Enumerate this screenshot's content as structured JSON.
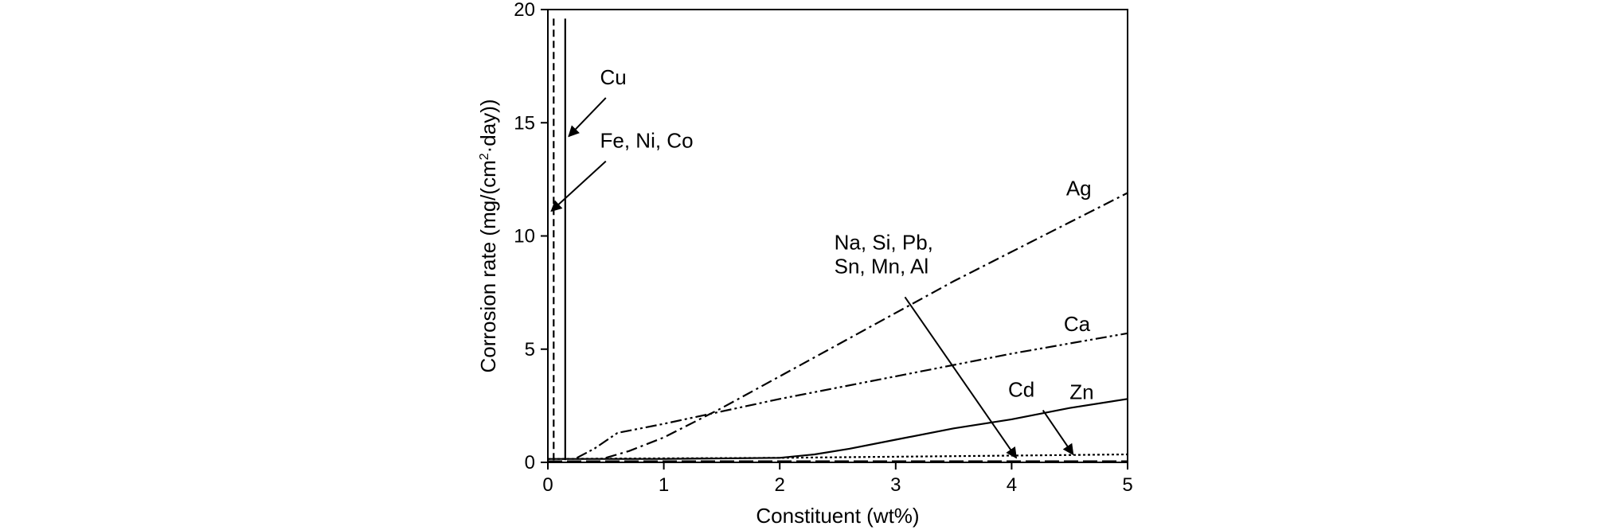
{
  "chart_data": {
    "type": "line",
    "xlabel": "Constituent (wt%)",
    "ylabel_main": "Corrosion rate (mg/(cm",
    "ylabel_sup": "2",
    "ylabel_tail": "·day))",
    "xlim": [
      0,
      5
    ],
    "ylim": [
      0,
      20
    ],
    "x_ticks": [
      "0",
      "1",
      "2",
      "3",
      "4",
      "5"
    ],
    "y_ticks": [
      "0",
      "5",
      "10",
      "15",
      "20"
    ],
    "grid": false,
    "legend": "none",
    "series": [
      {
        "name": "Cu",
        "style": "solid-thin",
        "x": [
          0.15,
          0.15
        ],
        "y": [
          0.1,
          19.6
        ]
      },
      {
        "name": "Fe, Ni, Co",
        "style": "dashed",
        "x": [
          0.05,
          0.05
        ],
        "y": [
          0.1,
          19.6
        ]
      },
      {
        "name": "Ag",
        "style": "dash-dot",
        "x": [
          0.5,
          0.7,
          1.0,
          1.5,
          2.0,
          2.5,
          3.0,
          3.5,
          4.0,
          4.5,
          5.0
        ],
        "y": [
          0.2,
          0.5,
          1.1,
          2.4,
          3.8,
          5.2,
          6.6,
          8.0,
          9.3,
          10.6,
          11.9
        ]
      },
      {
        "name": "Ca",
        "style": "dash-dot-dot",
        "x": [
          0.25,
          0.4,
          0.6,
          1.0,
          2.0,
          3.0,
          4.0,
          5.0
        ],
        "y": [
          0.2,
          0.6,
          1.3,
          1.7,
          2.8,
          3.8,
          4.8,
          5.7
        ]
      },
      {
        "name": "Zn",
        "style": "solid",
        "x": [
          0.0,
          1.0,
          2.0,
          2.3,
          2.6,
          3.0,
          3.5,
          4.0,
          4.5,
          5.0
        ],
        "y": [
          0.15,
          0.15,
          0.2,
          0.35,
          0.6,
          1.0,
          1.5,
          1.9,
          2.4,
          2.8
        ]
      },
      {
        "name": "Cd",
        "style": "dotted",
        "x": [
          0.0,
          2.0,
          3.0,
          4.0,
          5.0
        ],
        "y": [
          0.15,
          0.2,
          0.25,
          0.3,
          0.35
        ]
      },
      {
        "name": "Na, Si, Pb, Sn, Mn, Al",
        "style": "long-dash",
        "x": [
          0.0,
          5.0
        ],
        "y": [
          0.05,
          0.05
        ]
      }
    ],
    "annotations": [
      {
        "id": "cu",
        "lines": [
          "Cu"
        ],
        "text_at": [
          0.45,
          16.7
        ],
        "line_from": [
          0.5,
          16.1
        ],
        "arrow_to": [
          0.18,
          14.4
        ]
      },
      {
        "id": "fe",
        "lines": [
          "Fe, Ni, Co"
        ],
        "text_at": [
          0.45,
          13.9
        ],
        "line_from": [
          0.5,
          13.3
        ],
        "arrow_to": [
          0.03,
          11.1
        ]
      },
      {
        "id": "ag",
        "lines": [
          "Ag"
        ],
        "text_at": [
          4.47,
          11.8
        ],
        "line_from": null,
        "arrow_to": null
      },
      {
        "id": "na",
        "lines": [
          "Na, Si, Pb,",
          "Sn, Mn, Al"
        ],
        "text_at": [
          2.47,
          9.4
        ],
        "line_from": [
          3.08,
          7.3
        ],
        "arrow_to": [
          4.04,
          0.2
        ]
      },
      {
        "id": "ca",
        "lines": [
          "Ca"
        ],
        "text_at": [
          4.45,
          5.8
        ],
        "line_from": null,
        "arrow_to": null
      },
      {
        "id": "cd",
        "lines": [
          "Cd"
        ],
        "text_at": [
          3.97,
          2.9
        ],
        "line_from": [
          4.27,
          2.3
        ],
        "arrow_to": [
          4.53,
          0.35
        ]
      },
      {
        "id": "zn",
        "lines": [
          "Zn"
        ],
        "text_at": [
          4.5,
          2.8
        ],
        "line_from": null,
        "arrow_to": null
      }
    ]
  }
}
